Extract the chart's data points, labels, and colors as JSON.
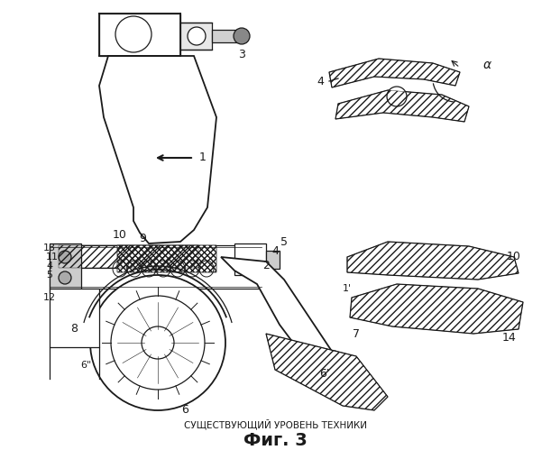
{
  "title_sub": "СУЩЕСТВУЮЩИЙ УРОВЕНЬ ТЕХНИКИ",
  "title_fig": "Фиг. 3",
  "background_color": "#ffffff",
  "line_color": "#1a1a1a",
  "fig_width": 6.11,
  "fig_height": 4.99,
  "dpi": 100
}
